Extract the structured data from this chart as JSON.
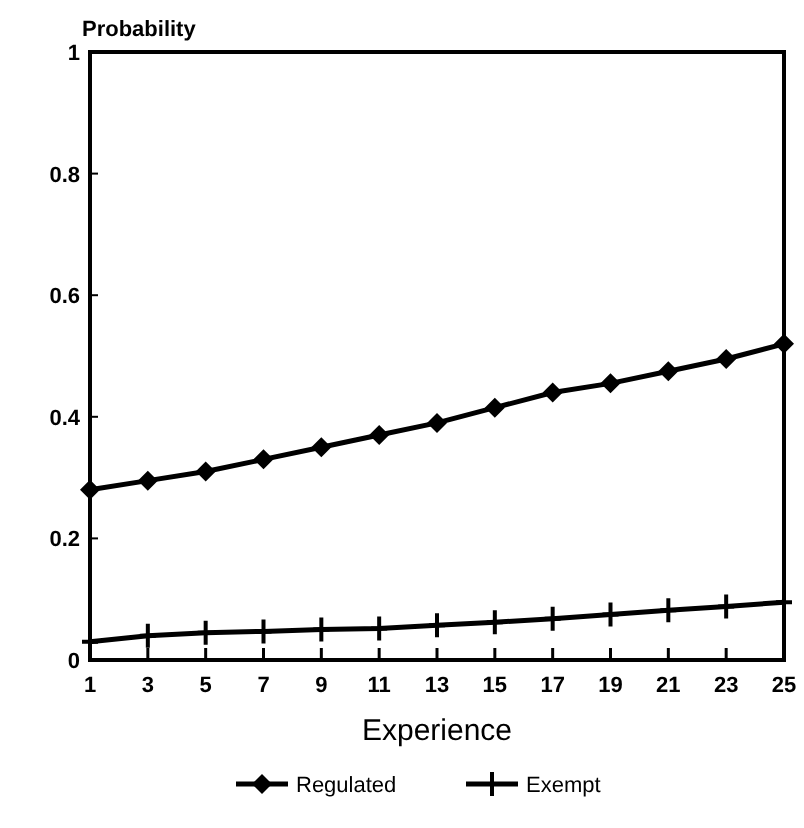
{
  "chart_data": {
    "type": "line",
    "ylabel": "Probability",
    "xlabel": "Experience",
    "xlim": [
      1,
      25
    ],
    "xticks": [
      1,
      3,
      5,
      7,
      9,
      11,
      13,
      15,
      17,
      19,
      21,
      23,
      25
    ],
    "ylim": [
      0,
      1
    ],
    "yticks": [
      0,
      0.2,
      0.4,
      0.6,
      0.8,
      1
    ],
    "grid": false,
    "legend": "bottom",
    "line_style": "solid",
    "x": [
      1,
      3,
      5,
      7,
      9,
      11,
      13,
      15,
      17,
      19,
      21,
      23,
      25
    ],
    "series": [
      {
        "name": "Regulated",
        "color": "#000000",
        "marker": "diamond",
        "values": [
          0.28,
          0.295,
          0.31,
          0.33,
          0.35,
          0.37,
          0.39,
          0.415,
          0.44,
          0.455,
          0.475,
          0.495,
          0.52
        ]
      },
      {
        "name": "Exempt",
        "color": "#000000",
        "marker": "cross",
        "values": [
          0.03,
          0.04,
          0.045,
          0.047,
          0.05,
          0.052,
          0.057,
          0.062,
          0.068,
          0.075,
          0.082,
          0.088,
          0.095
        ]
      }
    ]
  }
}
